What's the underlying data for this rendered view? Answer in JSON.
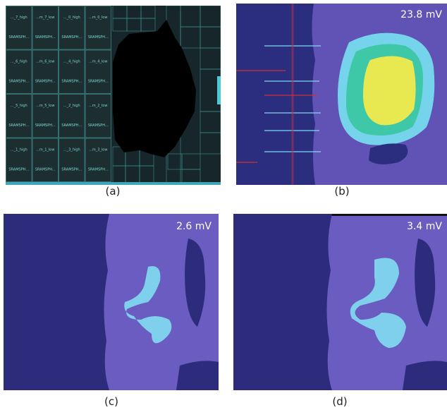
{
  "panels": [
    {
      "caption": "(a)",
      "blocks": [
        [
          {
            "top": "..._7_high",
            "bottom": "SRAMSPH..."
          },
          {
            "top": "...m_7_low",
            "bottom": "SRAMSPH..."
          },
          {
            "top": "..._0_high",
            "bottom": "SRAMSPH..."
          },
          {
            "top": "...m_0_low",
            "bottom": "SRAMSPH..."
          }
        ],
        [
          {
            "top": "..._6_high",
            "bottom": "SRAMSPH..."
          },
          {
            "top": "...m_6_low",
            "bottom": "SRAMSPH..."
          },
          {
            "top": "..._4_high",
            "bottom": "SRAMSPH..."
          },
          {
            "top": "...m_4_low",
            "bottom": "SRAMSPH..."
          }
        ],
        [
          {
            "top": "..._5_high",
            "bottom": "SRAMSPH..."
          },
          {
            "top": "...m_5_low",
            "bottom": "SRAMSPH..."
          },
          {
            "top": "..._2_high",
            "bottom": "SRAMSPH..."
          },
          {
            "top": "...m_2_low",
            "bottom": "SRAMSPH..."
          }
        ],
        [
          {
            "top": "..._1_high",
            "bottom": "SRAMSPH..."
          },
          {
            "top": "...m_1_low",
            "bottom": "SRAMSPH..."
          },
          {
            "top": "..._3_high",
            "bottom": "SRAMSPH..."
          },
          {
            "top": "...m_3_low",
            "bottom": "SRAMSPH..."
          }
        ]
      ]
    },
    {
      "caption": "(b)",
      "label": "23.8 mV"
    },
    {
      "caption": "(c)",
      "label": "2.6 mV"
    },
    {
      "caption": "(d)",
      "label": "3.4 mV"
    }
  ]
}
